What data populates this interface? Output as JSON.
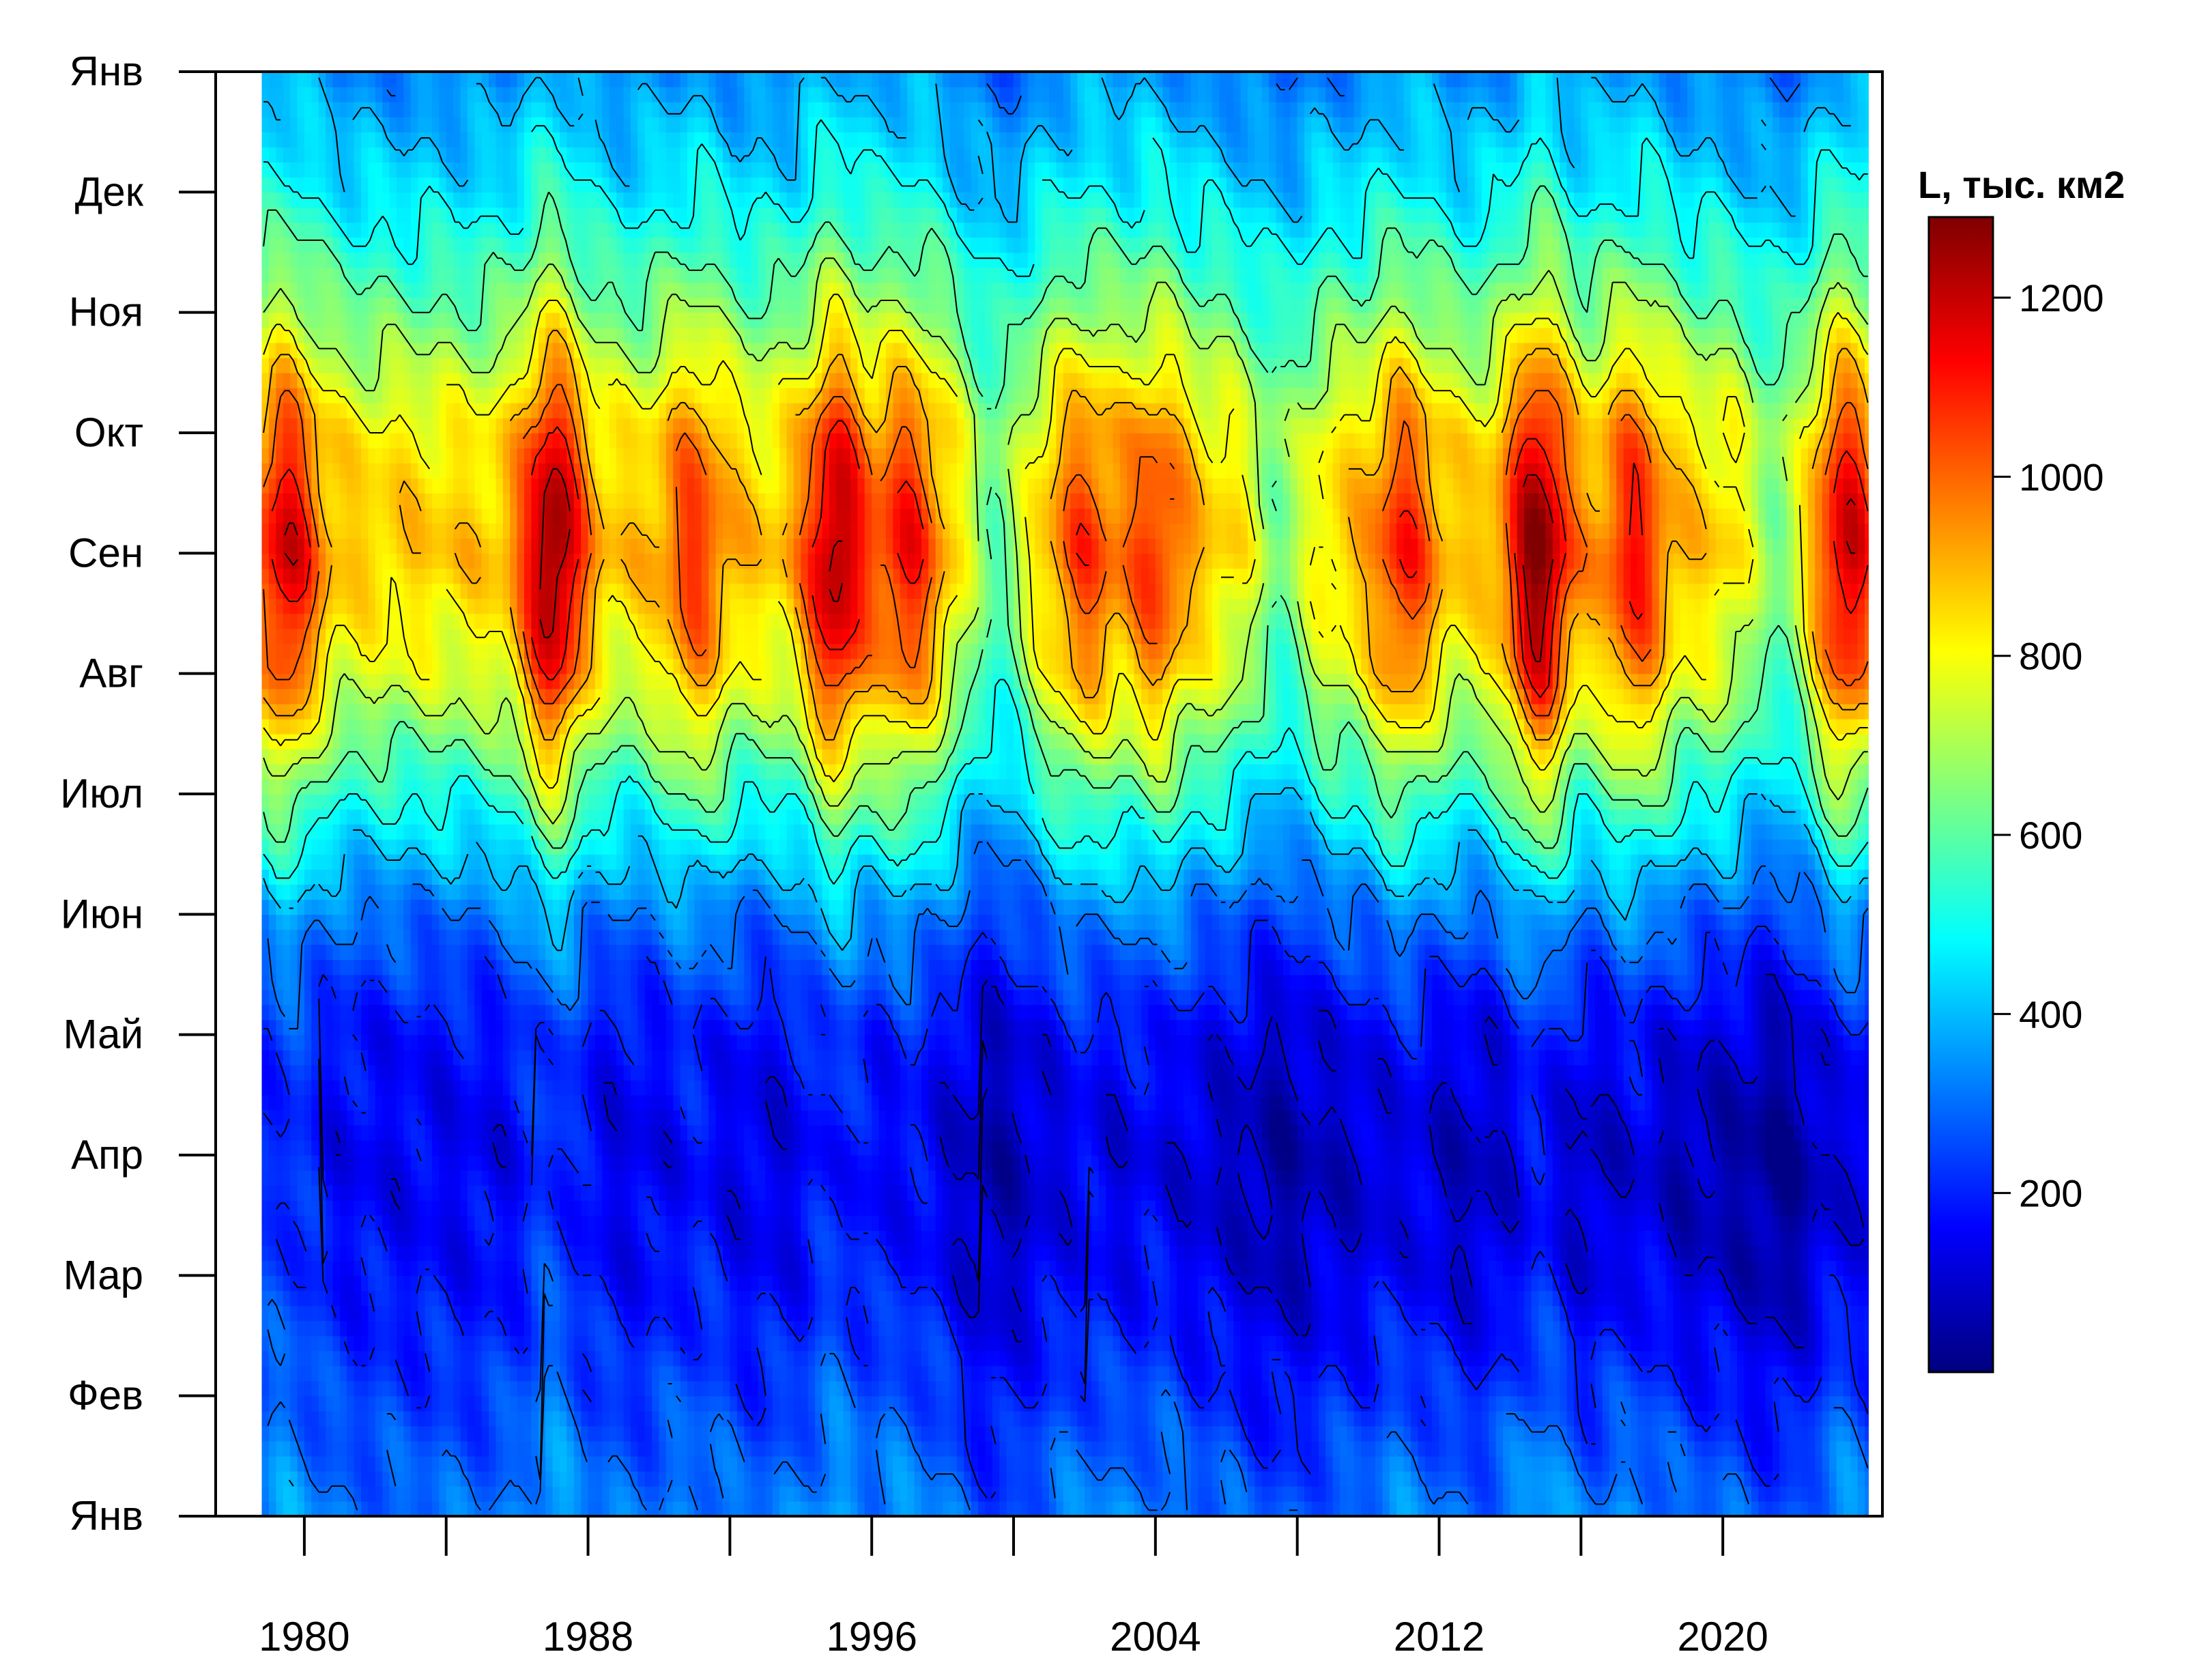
{
  "chart_data": {
    "type": "heatmap",
    "title": "",
    "xlabel": "",
    "ylabel": "",
    "x_range": [
      1977.5,
      2024.5
    ],
    "x_ticks": [
      1980,
      1984,
      1988,
      1992,
      1996,
      2000,
      2004,
      2008,
      2012,
      2016,
      2020
    ],
    "x_tick_labels": [
      "1980",
      "",
      "1988",
      "",
      "1996",
      "",
      "2004",
      "",
      "2012",
      "",
      "2020"
    ],
    "y_ticks": [
      "Янв",
      "Фев",
      "Мар",
      "Апр",
      "Май",
      "Июн",
      "Июл",
      "Авг",
      "Сен",
      "Окт",
      "Ноя",
      "Дек",
      "Янв"
    ],
    "colorbar": {
      "title": "L, тыс. км2",
      "range": [
        0,
        1290
      ],
      "ticks": [
        200,
        400,
        600,
        800,
        1000,
        1200
      ],
      "colors": [
        "#00007f",
        "#0000ff",
        "#007fff",
        "#00ffff",
        "#7fff7f",
        "#ffff00",
        "#ff7f00",
        "#ff0000",
        "#7f0000"
      ]
    },
    "data_start_year": 1978.8,
    "data_end_year": 2024.1,
    "z_description": "seasonal area; low Jan-May, high Jul-Oct",
    "monthly_profile": [
      300,
      230,
      170,
      140,
      170,
      300,
      520,
      760,
      880,
      820,
      620,
      450,
      330
    ],
    "year_anomalies": [
      {
        "year": 1979.5,
        "amp": 250
      },
      {
        "year": 1987.0,
        "amp": 330
      },
      {
        "year": 1991.0,
        "amp": 160
      },
      {
        "year": 1995.0,
        "amp": 300
      },
      {
        "year": 1997.0,
        "amp": 200
      },
      {
        "year": 2002.0,
        "amp": 150
      },
      {
        "year": 2004.0,
        "amp": 160
      },
      {
        "year": 2011.0,
        "amp": 180
      },
      {
        "year": 2014.8,
        "amp": 340
      },
      {
        "year": 2017.5,
        "amp": 200
      },
      {
        "year": 2023.5,
        "amp": 260
      },
      {
        "year": 1999.5,
        "amp": -200
      },
      {
        "year": 2007.5,
        "amp": -180
      },
      {
        "year": 2021.5,
        "amp": -170
      }
    ]
  }
}
